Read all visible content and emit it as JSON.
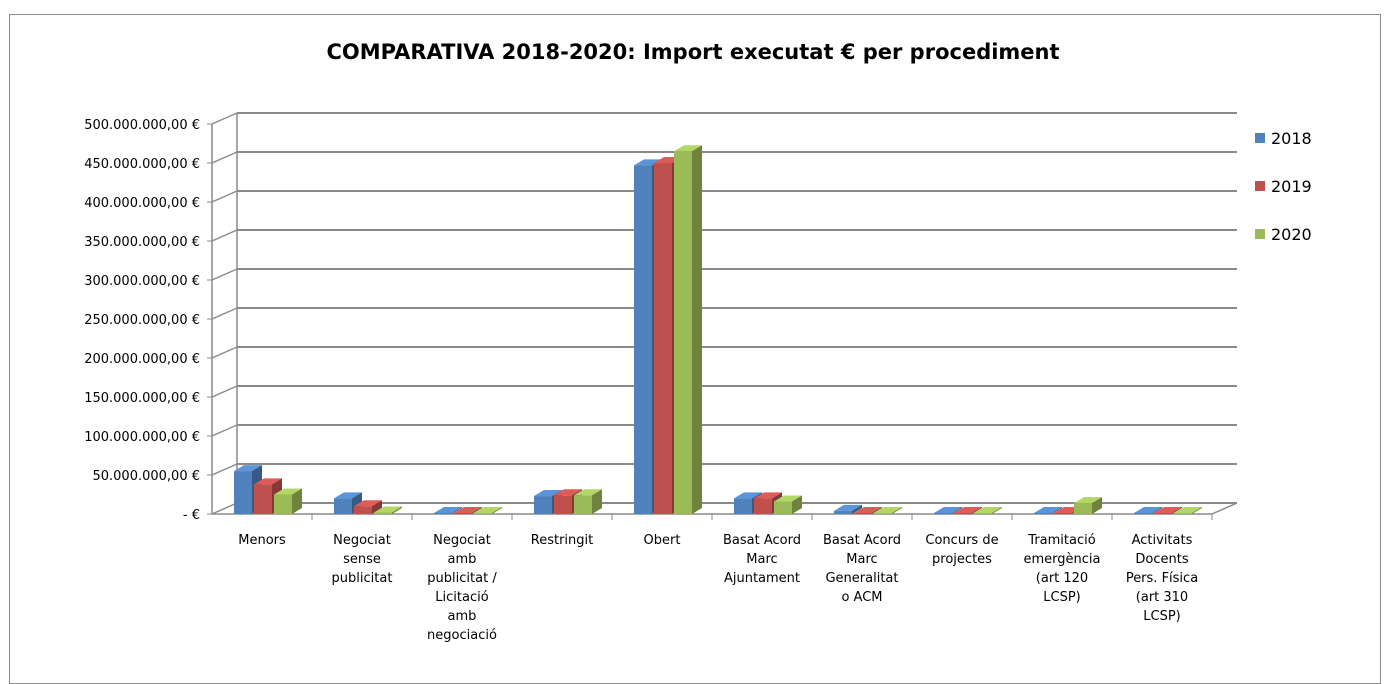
{
  "chart_data": {
    "type": "bar",
    "title": "COMPARATIVA 2018-2020: Import executat € per procediment",
    "xlabel": "",
    "ylabel": "",
    "ylim": [
      0,
      500000000
    ],
    "yticks": [
      "-   €",
      "50.000.000,00 €",
      "100.000.000,00 €",
      "150.000.000,00 €",
      "200.000.000,00 €",
      "250.000.000,00 €",
      "300.000.000,00 €",
      "350.000.000,00 €",
      "400.000.000,00 €",
      "450.000.000,00 €",
      "500.000.000,00 €"
    ],
    "categories": [
      [
        "Menors"
      ],
      [
        "Negociat",
        "sense",
        "publicitat"
      ],
      [
        "Negociat",
        "amb",
        "publicitat /",
        "Licitació",
        "amb",
        "negociació"
      ],
      [
        "Restringit"
      ],
      [
        "Obert"
      ],
      [
        "Basat Acord",
        "Marc",
        "Ajuntament"
      ],
      [
        "Basat Acord",
        "Marc",
        "Generalitat",
        "o ACM"
      ],
      [
        "Concurs de",
        "projectes"
      ],
      [
        "Tramitació",
        "emergència",
        "(art 120",
        "LCSP)"
      ],
      [
        "Activitats",
        "Docents",
        "Pers. Física",
        "(art 310",
        "LCSP)"
      ]
    ],
    "series": [
      {
        "name": "2018",
        "color": "#4f81bd",
        "values": [
          55000000,
          20000000,
          300000,
          23000000,
          447000000,
          20000000,
          4000000,
          500000,
          300000,
          200000
        ]
      },
      {
        "name": "2019",
        "color": "#c0504d",
        "values": [
          38000000,
          10000000,
          300000,
          24000000,
          450000000,
          20000000,
          1000000,
          500000,
          300000,
          200000
        ]
      },
      {
        "name": "2020",
        "color": "#9bbb59",
        "values": [
          25000000,
          2000000,
          300000,
          24000000,
          465000000,
          16000000,
          1000000,
          300000,
          14000000,
          200000
        ]
      }
    ],
    "grid": true,
    "legend_position": "right"
  }
}
